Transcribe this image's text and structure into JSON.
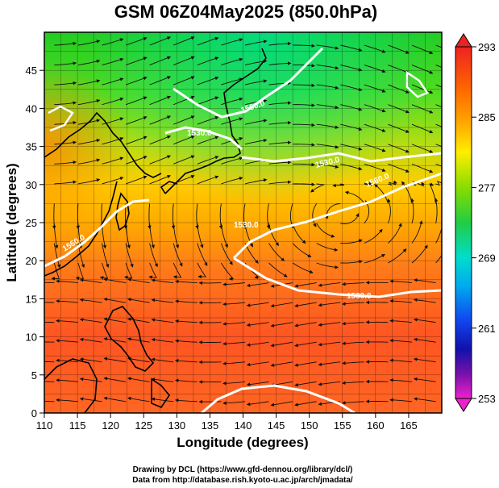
{
  "title": "GSM 06Z04May2025 (850.0hPa)",
  "x_axis": {
    "label": "Longitude (degrees)",
    "min": 110,
    "max": 170,
    "ticks": [
      "110",
      "115",
      "120",
      "125",
      "130",
      "135",
      "140",
      "145",
      "150",
      "155",
      "160",
      "165"
    ]
  },
  "y_axis": {
    "label": "Latitude (degrees)",
    "min": 0,
    "max": 50,
    "ticks": [
      "0",
      "5",
      "10",
      "15",
      "20",
      "25",
      "30",
      "35",
      "40",
      "45"
    ]
  },
  "colorbar": {
    "min": 253,
    "max": 293,
    "tick_labels": [
      "293",
      "285",
      "277",
      "269",
      "261",
      "253"
    ],
    "colors": [
      "#ee2222",
      "#ff8800",
      "#ffcc00",
      "#33cc11",
      "#00ddaa",
      "#00bbee",
      "#1166ee",
      "#0000aa",
      "#8800aa",
      "#ee22cc"
    ]
  },
  "contours": [
    {
      "label": "1560.0"
    },
    {
      "label": "1530.0"
    },
    {
      "label": "1500.0"
    },
    {
      "label": "1530.0"
    },
    {
      "label": "1560.0"
    },
    {
      "label": "1560.0"
    },
    {
      "label": "1530.0"
    }
  ],
  "credits": {
    "line1": "Drawing by DCL (https://www.gfd-dennou.org/library/dcl/)",
    "line2": "Data from http://database.rish.kyoto-u.ac.jp/arch/jmadata/"
  }
}
